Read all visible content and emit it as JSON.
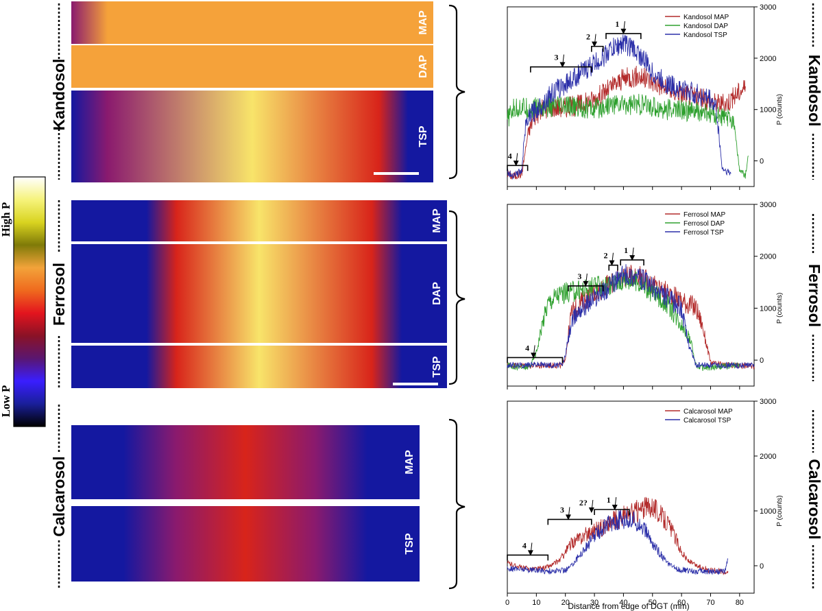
{
  "colorbar": {
    "high_label": "High P",
    "low_label": "Low P",
    "stops": [
      "#ffffff",
      "#f6f37c",
      "#d9d420",
      "#7f7a08",
      "#f2a33a",
      "#ef6a1e",
      "#e3141e",
      "#8a1226",
      "#5a1670",
      "#3a1eff",
      "#1a1f9a",
      "#000000"
    ]
  },
  "panels": [
    {
      "soil": "Kandosol",
      "images": [
        {
          "label": "MAP",
          "palette": "warm"
        },
        {
          "label": "DAP",
          "palette": "warm"
        },
        {
          "label": "TSP",
          "palette": "warm"
        }
      ]
    },
    {
      "soil": "Ferrosol",
      "images": [
        {
          "label": "MAP",
          "palette": "warm"
        },
        {
          "label": "DAP",
          "palette": "warm"
        },
        {
          "label": "TSP",
          "palette": "warm"
        }
      ]
    },
    {
      "soil": "Calcarosol",
      "images": [
        {
          "label": "MAP",
          "palette": "cool"
        },
        {
          "label": "TSP",
          "palette": "cool"
        }
      ]
    }
  ],
  "chart_data": [
    {
      "type": "line",
      "xlabel": "",
      "ylabel": "P (counts)",
      "xlim": [
        0,
        85
      ],
      "ylim": [
        -500,
        3000
      ],
      "yticks": [
        0,
        1000,
        2000,
        3000
      ],
      "legend_position": "top-right",
      "series": [
        {
          "name": "Kandosol MAP",
          "color": "#b22a2a",
          "x": [
            0,
            2,
            5,
            7,
            9,
            12,
            15,
            20,
            25,
            30,
            35,
            40,
            45,
            50,
            55,
            60,
            65,
            70,
            75,
            78,
            82
          ],
          "y": [
            -250,
            -300,
            -250,
            500,
            850,
            1000,
            1050,
            1050,
            1100,
            1200,
            1400,
            1600,
            1650,
            1550,
            1400,
            1300,
            1250,
            1150,
            1100,
            1250,
            1450
          ]
        },
        {
          "name": "Kandosol DAP",
          "color": "#2ea02e",
          "x": [
            0,
            2,
            5,
            8,
            10,
            15,
            20,
            25,
            30,
            35,
            40,
            45,
            50,
            55,
            60,
            65,
            70,
            74,
            78,
            80,
            82,
            83
          ],
          "y": [
            800,
            1000,
            1050,
            1000,
            1050,
            1050,
            1050,
            1050,
            1000,
            1100,
            1100,
            1100,
            1050,
            1000,
            1000,
            950,
            900,
            850,
            800,
            -200,
            -300,
            100
          ]
        },
        {
          "name": "Kandosol TSP",
          "color": "#2a2ea8",
          "x": [
            0,
            1,
            3,
            5,
            6,
            8,
            10,
            12,
            15,
            20,
            25,
            30,
            33,
            35,
            37,
            40,
            43,
            45,
            48,
            50,
            55,
            60,
            65,
            70,
            72,
            74,
            77
          ],
          "y": [
            -200,
            -280,
            -250,
            -200,
            600,
            900,
            1000,
            1100,
            1300,
            1500,
            1700,
            1900,
            2000,
            2150,
            2200,
            2300,
            2200,
            2100,
            1900,
            1700,
            1500,
            1400,
            1300,
            1200,
            1000,
            -150,
            -250
          ]
        }
      ],
      "annotations": [
        {
          "label": "4",
          "x": 3,
          "y": -170,
          "span": [
            0,
            7
          ],
          "arrow": true
        },
        {
          "label": "3",
          "x": 19,
          "y": 1750,
          "span": [
            8,
            29
          ],
          "arrow": true
        },
        {
          "label": "2",
          "x": 30,
          "y": 2150,
          "span": [
            29,
            33
          ],
          "arrow": true
        },
        {
          "label": "1",
          "x": 40,
          "y": 2400,
          "span": [
            34,
            46
          ],
          "arrow": true
        }
      ]
    },
    {
      "type": "line",
      "xlabel": "",
      "ylabel": "P (counts)",
      "xlim": [
        0,
        85
      ],
      "ylim": [
        -500,
        3000
      ],
      "yticks": [
        0,
        1000,
        2000,
        3000
      ],
      "legend_position": "top-right",
      "series": [
        {
          "name": "Ferrosol MAP",
          "color": "#b22a2a",
          "x": [
            0,
            5,
            10,
            15,
            19,
            20,
            22,
            25,
            30,
            35,
            40,
            45,
            50,
            55,
            60,
            65,
            67,
            70,
            75,
            80,
            85
          ],
          "y": [
            -100,
            -100,
            -110,
            -100,
            -100,
            50,
            900,
            1100,
            1300,
            1450,
            1600,
            1650,
            1450,
            1300,
            1150,
            1000,
            700,
            -50,
            -100,
            -100,
            -120
          ]
        },
        {
          "name": "Ferrosol DAP",
          "color": "#2ea02e",
          "x": [
            0,
            3,
            6,
            8,
            10,
            12,
            14,
            17,
            20,
            25,
            30,
            35,
            40,
            45,
            50,
            55,
            60,
            63,
            65,
            67,
            70,
            75,
            80
          ],
          "y": [
            -100,
            -130,
            -150,
            -100,
            150,
            700,
            1100,
            1250,
            1300,
            1350,
            1400,
            1450,
            1550,
            1500,
            1300,
            1100,
            700,
            400,
            -100,
            -150,
            -150,
            -120,
            -100
          ]
        },
        {
          "name": "Ferrosol TSP",
          "color": "#2a2ea8",
          "x": [
            0,
            5,
            10,
            15,
            19,
            20,
            22,
            25,
            28,
            30,
            35,
            40,
            45,
            50,
            55,
            60,
            62,
            65,
            70,
            75,
            80,
            85
          ],
          "y": [
            -100,
            -100,
            -80,
            -100,
            -100,
            100,
            700,
            1000,
            1100,
            1200,
            1400,
            1650,
            1600,
            1400,
            1200,
            1000,
            400,
            -100,
            -100,
            -100,
            -100,
            -100
          ]
        }
      ],
      "annotations": [
        {
          "label": "4",
          "x": 9,
          "y": -30,
          "span": [
            0,
            19
          ],
          "arrow": true
        },
        {
          "label": "3",
          "x": 27,
          "y": 1350,
          "span": [
            21,
            33
          ],
          "arrow": true
        },
        {
          "label": "2",
          "x": 36,
          "y": 1750,
          "span": [
            35,
            38
          ],
          "arrow": true
        },
        {
          "label": "1",
          "x": 43,
          "y": 1850,
          "span": [
            39,
            47
          ],
          "arrow": true
        }
      ]
    },
    {
      "type": "line",
      "xlabel": "Distance from edge of DGT (mm)",
      "ylabel": "P (counts)",
      "xlim": [
        0,
        85
      ],
      "ylim": [
        -500,
        3000
      ],
      "xticks": [
        0,
        10,
        20,
        30,
        40,
        50,
        60,
        70,
        80
      ],
      "yticks": [
        0,
        1000,
        2000,
        3000
      ],
      "legend_position": "top-right",
      "series": [
        {
          "name": "Calcarosol MAP",
          "color": "#b22a2a",
          "x": [
            0,
            3,
            6,
            9,
            12,
            15,
            18,
            20,
            22,
            25,
            28,
            30,
            33,
            36,
            40,
            43,
            45,
            48,
            50,
            53,
            55,
            58,
            60,
            62,
            65,
            68,
            70,
            73,
            76
          ],
          "y": [
            50,
            0,
            -50,
            -60,
            -50,
            0,
            100,
            250,
            400,
            500,
            600,
            650,
            700,
            800,
            900,
            950,
            1000,
            1050,
            1100,
            900,
            800,
            500,
            250,
            100,
            0,
            -50,
            -80,
            -100,
            -100
          ]
        },
        {
          "name": "Calcarosol TSP",
          "color": "#2a2ea8",
          "x": [
            0,
            5,
            10,
            15,
            20,
            22,
            25,
            28,
            30,
            33,
            36,
            40,
            43,
            45,
            48,
            50,
            53,
            55,
            58,
            60,
            65,
            70,
            75,
            76
          ],
          "y": [
            -50,
            -60,
            -80,
            -100,
            -80,
            0,
            200,
            400,
            550,
            700,
            800,
            850,
            820,
            800,
            600,
            400,
            200,
            50,
            -50,
            -80,
            -100,
            -100,
            -100,
            120
          ]
        }
      ],
      "annotations": [
        {
          "label": "4",
          "x": 8,
          "y": 120,
          "span": [
            0,
            14
          ],
          "arrow": true
        },
        {
          "label": "3",
          "x": 21,
          "y": 770,
          "span": [
            14,
            29
          ],
          "arrow": true
        },
        {
          "label": "2?",
          "x": 29,
          "y": 900,
          "span": [
            29,
            29
          ],
          "arrow": true
        },
        {
          "label": "1",
          "x": 37,
          "y": 950,
          "span": [
            30,
            42
          ],
          "arrow": true
        }
      ]
    }
  ],
  "right_labels": [
    "Kandosol",
    "Ferrosol",
    "Calcarosol"
  ]
}
